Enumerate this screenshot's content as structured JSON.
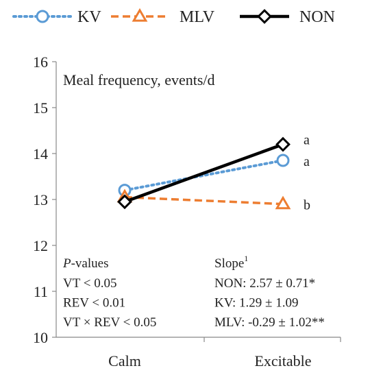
{
  "chart_data": {
    "type": "line",
    "title": "Meal frequency, events/d",
    "categories": [
      "Calm",
      "Excitable"
    ],
    "ylim": [
      10,
      16
    ],
    "yticks": [
      10,
      11,
      12,
      13,
      14,
      15,
      16
    ],
    "grid": false,
    "legend_position": "top",
    "series": [
      {
        "name": "KV",
        "values": [
          13.2,
          13.85
        ],
        "color": "#5b9bd5",
        "line": "dotted",
        "marker": "circle",
        "labels": [
          "",
          "a"
        ]
      },
      {
        "name": "MLV",
        "values": [
          13.05,
          12.9
        ],
        "color": "#ed7d31",
        "line": "dashed",
        "marker": "triangle",
        "labels": [
          "",
          "b"
        ]
      },
      {
        "name": "NON",
        "values": [
          12.95,
          14.2
        ],
        "color": "#000000",
        "line": "solid",
        "marker": "diamond",
        "labels": [
          "",
          "a"
        ]
      }
    ],
    "annotations": {
      "pvalues": {
        "heading_italic": "P",
        "heading_rest": "-values",
        "lines": [
          "VT < 0.05",
          "REV < 0.01",
          "VT × REV < 0.05"
        ]
      },
      "slope": {
        "heading": "Slope",
        "heading_sup": "1",
        "lines": [
          "NON: 2.57 ± 0.71*",
          "KV: 1.29 ± 1.09",
          "MLV: -0.29 ± 1.02**"
        ]
      }
    }
  }
}
